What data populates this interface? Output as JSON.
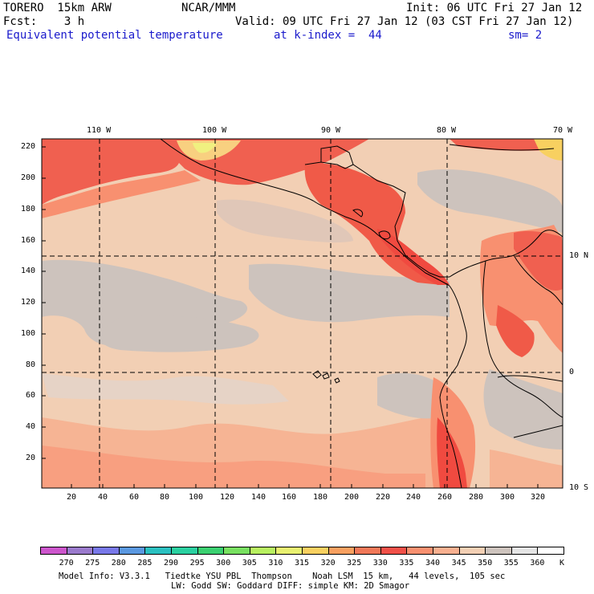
{
  "header": {
    "model": "TORERO  15km ARW",
    "center": "NCAR/MMM",
    "init": "Init: 06 UTC Fri 27 Jan 12",
    "fcst": "Fcst:    3 h",
    "valid": "Valid: 09 UTC Fri 27 Jan 12 (03 CST Fri 27 Jan 12)",
    "field": "Equivalent potential temperature",
    "level": "at k-index =  44",
    "smoothing": "sm= 2"
  },
  "map": {
    "top_lon_labels": [
      "110 W",
      "100 W",
      "90 W",
      "80 W",
      "70 W"
    ],
    "right_lat_labels": [
      "10 N",
      "0",
      "10 S"
    ],
    "y_ticks": [
      "220",
      "200",
      "180",
      "160",
      "140",
      "120",
      "100",
      "80",
      "60",
      "40",
      "20"
    ],
    "x_ticks": [
      "20",
      "40",
      "60",
      "80",
      "100",
      "120",
      "140",
      "160",
      "180",
      "200",
      "220",
      "240",
      "260",
      "280",
      "300",
      "320"
    ]
  },
  "colorbar": {
    "levels": [
      "270",
      "275",
      "280",
      "285",
      "290",
      "295",
      "300",
      "305",
      "310",
      "315",
      "320",
      "325",
      "330",
      "335",
      "340",
      "345",
      "350",
      "355",
      "360"
    ],
    "colors": [
      "#cc55cc",
      "#9a7acc",
      "#7878e8",
      "#5a98e0",
      "#2ac0c0",
      "#2ad0a0",
      "#3ad070",
      "#78e060",
      "#b8f060",
      "#e8f070",
      "#f8d060",
      "#f8a060",
      "#f07858",
      "#f05048",
      "#f89070",
      "#f8b090",
      "#f2cfb4",
      "#cdc3bd",
      "#e4e4e4",
      "#ffffff"
    ],
    "unit": "K"
  },
  "footer": {
    "line1": "Model Info: V3.3.1   Tiedtke YSU PBL  Thompson    Noah LSM  15 km,   44 levels,  105 sec",
    "line2": "LW: Godd SW: Goddard DIFF: simple KM: 2D Smagor"
  }
}
